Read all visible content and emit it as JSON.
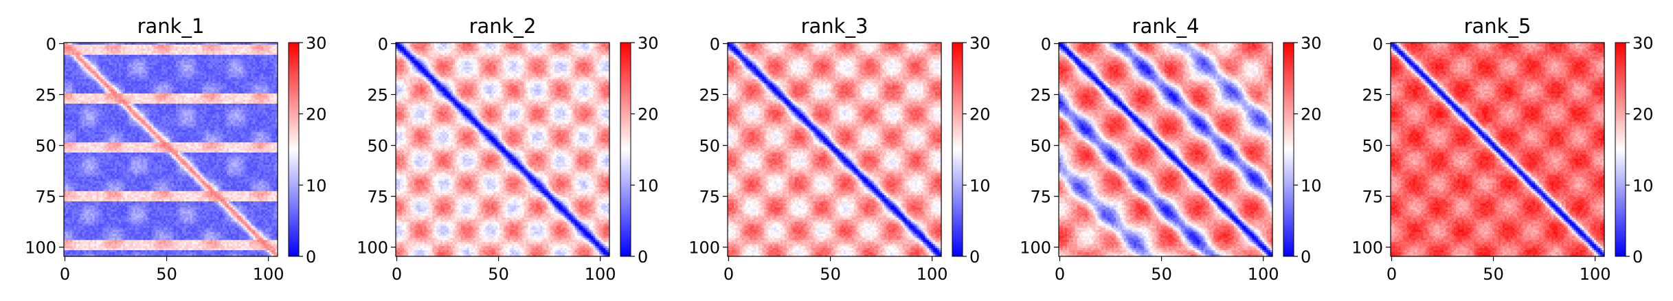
{
  "chart_data": [
    {
      "type": "heatmap",
      "title": "rank_1",
      "size": 105,
      "xticks": [
        0,
        50,
        100
      ],
      "yticks": [
        0,
        25,
        50,
        75,
        100
      ],
      "colorbar": {
        "min": 0,
        "max": 30,
        "ticks": [
          0,
          10,
          20,
          30
        ]
      },
      "pattern": {
        "block_period": 24,
        "off_level": 6,
        "mod_level": 7,
        "band_level": 22,
        "texture": 3
      }
    },
    {
      "type": "heatmap",
      "title": "rank_2",
      "size": 105,
      "xticks": [
        0,
        50,
        100
      ],
      "yticks": [
        0,
        25,
        50,
        75,
        100
      ],
      "colorbar": {
        "min": 0,
        "max": 30,
        "ticks": [
          0,
          10,
          20,
          30
        ]
      },
      "pattern": {
        "block_period": 23,
        "off_level": 24,
        "mod_level": 12,
        "band_level": 0,
        "texture": 3
      }
    },
    {
      "type": "heatmap",
      "title": "rank_3",
      "size": 105,
      "xticks": [
        0,
        50,
        100
      ],
      "yticks": [
        0,
        25,
        50,
        75,
        100
      ],
      "colorbar": {
        "min": 0,
        "max": 30,
        "ticks": [
          0,
          10,
          20,
          30
        ]
      },
      "pattern": {
        "block_period": 23,
        "off_level": 25,
        "mod_level": 11,
        "band_level": 0,
        "texture": 3
      }
    },
    {
      "type": "heatmap",
      "title": "rank_4",
      "size": 105,
      "xticks": [
        0,
        50,
        100
      ],
      "yticks": [
        0,
        25,
        50,
        75,
        100
      ],
      "colorbar": {
        "min": 0,
        "max": 30,
        "ticks": [
          0,
          10,
          20,
          30
        ]
      },
      "pattern": {
        "block_period": 27,
        "off_level": 27,
        "mod_level": 12,
        "band_level": 0,
        "texture": 3
      }
    },
    {
      "type": "heatmap",
      "title": "rank_5",
      "size": 105,
      "xticks": [
        0,
        50,
        100
      ],
      "yticks": [
        0,
        25,
        50,
        75,
        100
      ],
      "colorbar": {
        "min": 0,
        "max": 30,
        "ticks": [
          0,
          10,
          20,
          30
        ]
      },
      "pattern": {
        "block_period": 23,
        "off_level": 28,
        "mod_level": 8,
        "band_level": 0,
        "texture": 3
      }
    }
  ],
  "colors": {
    "low": "#0000ff",
    "mid": "#ffffff",
    "high": "#ff0000"
  }
}
